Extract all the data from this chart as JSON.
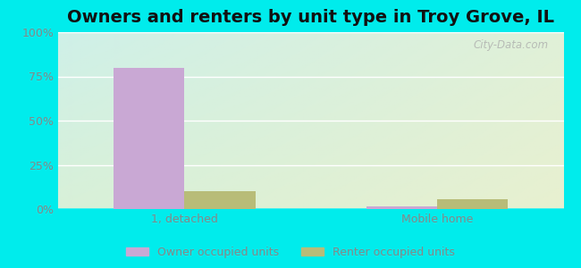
{
  "title": "Owners and renters by unit type in Troy Grove, IL",
  "categories": [
    "1, detached",
    "Mobile home"
  ],
  "owner_values": [
    80.0,
    1.5
  ],
  "renter_values": [
    10.0,
    5.5
  ],
  "owner_color": "#c9a8d4",
  "renter_color": "#b8bc78",
  "ylim": [
    0,
    100
  ],
  "yticks": [
    0,
    25,
    50,
    75,
    100
  ],
  "ytick_labels": [
    "0%",
    "25%",
    "50%",
    "75%",
    "100%"
  ],
  "background_color": "#00ecec",
  "gradient_top_left": "#cff0e8",
  "gradient_bottom_right": "#e8f0d0",
  "title_fontsize": 14,
  "bar_width": 0.28,
  "legend_labels": [
    "Owner occupied units",
    "Renter occupied units"
  ],
  "watermark": "City-Data.com",
  "tick_color": "#888888",
  "grid_color": "#ffffff"
}
